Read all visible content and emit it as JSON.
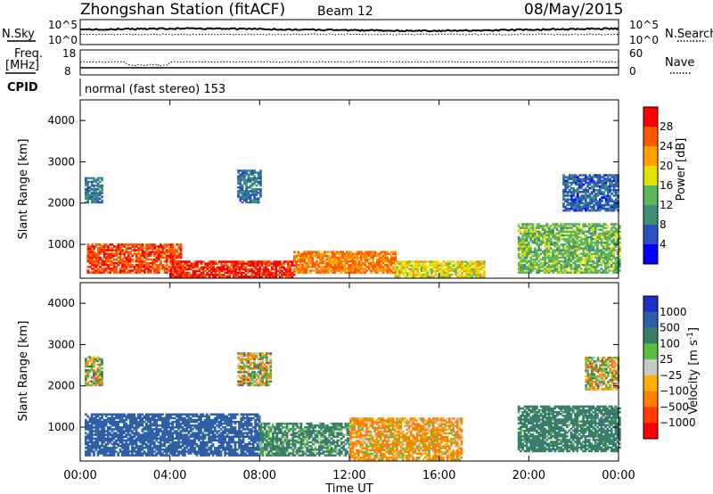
{
  "header": {
    "station_title": "Zhongshan Station (fitACF)",
    "beam_label": "Beam 12",
    "date": "08/May/2015"
  },
  "noise_panel": {
    "left_label": "N.Sky",
    "right_label": "N.Search",
    "left_ticks": [
      "10^5",
      "10^0"
    ],
    "right_ticks": [
      "10^5",
      "10^0"
    ]
  },
  "freq_panel": {
    "left_label_line1": "Freq.",
    "left_label_line2": "[MHz]",
    "right_label": "Nave",
    "left_ticks": [
      "18",
      "8"
    ],
    "right_ticks": [
      "60",
      "0"
    ]
  },
  "cpid": {
    "label": "CPID",
    "text": "normal (fast stereo) 153"
  },
  "power_panel": {
    "ylabel": "Slant Range [km]",
    "y_ticks": [
      "1000",
      "2000",
      "3000",
      "4000"
    ],
    "colorbar_label": "Power [dB]",
    "colorbar_ticks": [
      "4",
      "8",
      "12",
      "16",
      "20",
      "24",
      "28"
    ],
    "colors": [
      "#0000ff",
      "#2b50c0",
      "#3f8f78",
      "#5fb55a",
      "#e4e000",
      "#ff9f00",
      "#ff5a00",
      "#ff0000"
    ]
  },
  "velocity_panel": {
    "ylabel": "Slant Range [km]",
    "y_ticks": [
      "1000",
      "2000",
      "3000",
      "4000"
    ],
    "colorbar_label": "Velocity [m s",
    "colorbar_sup": "-1",
    "colorbar_ticks": [
      "1000",
      "500",
      "100",
      "25",
      "−25",
      "−100",
      "−500",
      "−1000"
    ],
    "colors": [
      "#1f30c8",
      "#2f5fa8",
      "#3a7e6a",
      "#58c040",
      "#c8c8c8",
      "#ffb000",
      "#ff8000",
      "#ff4000",
      "#ff0000"
    ]
  },
  "x_axis": {
    "label": "Time UT",
    "ticks": [
      "00:00",
      "04:00",
      "08:00",
      "12:00",
      "16:00",
      "20:00",
      "00:00"
    ]
  },
  "chart_data": [
    {
      "type": "heatmap",
      "name": "Power",
      "ylabel": "Slant Range [km]",
      "xlabel": "Time UT",
      "xlim": [
        0,
        24
      ],
      "ylim": [
        180,
        4500
      ],
      "zlim": [
        0,
        32
      ],
      "zlabel": "Power [dB]",
      "regions": [
        {
          "x": [
            0.3,
            4.5
          ],
          "y": [
            300,
            1000
          ],
          "z": 27
        },
        {
          "x": [
            4.0,
            9.5
          ],
          "y": [
            200,
            600
          ],
          "z": 29
        },
        {
          "x": [
            9.5,
            14.0
          ],
          "y": [
            300,
            800
          ],
          "z": 24
        },
        {
          "x": [
            14.0,
            18.0
          ],
          "y": [
            200,
            600
          ],
          "z": 18
        },
        {
          "x": [
            0.2,
            1.0
          ],
          "y": [
            2000,
            2600
          ],
          "z": 9
        },
        {
          "x": [
            7.0,
            8.0
          ],
          "y": [
            2000,
            2800
          ],
          "z": 8
        },
        {
          "x": [
            19.5,
            24.0
          ],
          "y": [
            300,
            1500
          ],
          "z": 14
        },
        {
          "x": [
            21.5,
            24.0
          ],
          "y": [
            1800,
            2700
          ],
          "z": 7
        }
      ]
    },
    {
      "type": "heatmap",
      "name": "Velocity",
      "ylabel": "Slant Range [km]",
      "xlabel": "Time UT",
      "xlim": [
        0,
        24
      ],
      "ylim": [
        180,
        4500
      ],
      "zlim": [
        -1000,
        1000
      ],
      "zlabel": "Velocity [m s-1]",
      "regions": [
        {
          "x": [
            0.2,
            8.0
          ],
          "y": [
            300,
            1300
          ],
          "z": 700
        },
        {
          "x": [
            8.0,
            12.0
          ],
          "y": [
            300,
            1100
          ],
          "z": 200
        },
        {
          "x": [
            12.0,
            17.0
          ],
          "y": [
            200,
            1200
          ],
          "z": -150
        },
        {
          "x": [
            19.5,
            24.0
          ],
          "y": [
            400,
            1500
          ],
          "z": 300
        },
        {
          "x": [
            0.2,
            1.0
          ],
          "y": [
            2000,
            2700
          ],
          "z": 0
        },
        {
          "x": [
            7.0,
            8.5
          ],
          "y": [
            2000,
            2800
          ],
          "z": 0
        },
        {
          "x": [
            22.5,
            24.0
          ],
          "y": [
            1900,
            2700
          ],
          "z": 0
        }
      ]
    }
  ]
}
